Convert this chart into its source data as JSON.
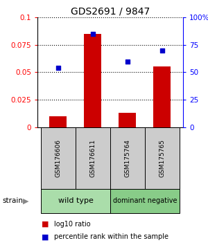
{
  "title": "GDS2691 / 9847",
  "samples": [
    "GSM176606",
    "GSM176611",
    "GSM175764",
    "GSM175765"
  ],
  "log10_ratio": [
    0.01,
    0.085,
    0.013,
    0.055
  ],
  "percentile_rank": [
    54,
    85,
    60,
    70
  ],
  "ylim_left": [
    0,
    0.1
  ],
  "ylim_right": [
    0,
    100
  ],
  "yticks_left": [
    0,
    0.025,
    0.05,
    0.075,
    0.1
  ],
  "ytick_labels_left": [
    "0",
    "0.025",
    "0.05",
    "0.075",
    "0.1"
  ],
  "yticks_right": [
    0,
    25,
    50,
    75,
    100
  ],
  "ytick_labels_right": [
    "0",
    "25",
    "50",
    "75",
    "100%"
  ],
  "groups": [
    {
      "label": "wild type",
      "indices": [
        0,
        1
      ],
      "color": "#aaddaa"
    },
    {
      "label": "dominant negative",
      "indices": [
        2,
        3
      ],
      "color": "#88cc88"
    }
  ],
  "bar_color": "#cc0000",
  "scatter_color": "#0000cc",
  "bar_width": 0.5,
  "label_area_color": "#cccccc",
  "strain_label": "strain",
  "legend_items": [
    {
      "color": "#cc0000",
      "label": "log10 ratio"
    },
    {
      "color": "#0000cc",
      "label": "percentile rank within the sample"
    }
  ]
}
